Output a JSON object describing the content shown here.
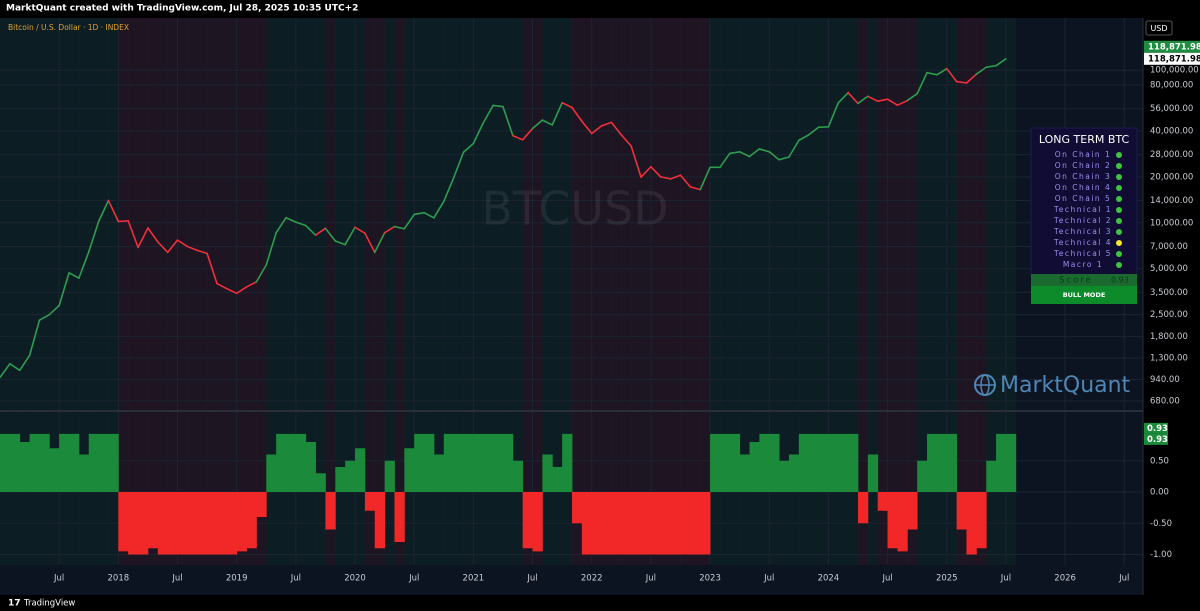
{
  "header": "MarktQuant created with TradingView.com, Jul 28, 2025 10:35 UTC+2",
  "footer": "TradingView",
  "symbol_title": "Bitcoin / U.S. Dollar · 1D · INDEX",
  "watermark": "BTCUSD",
  "logo": "MarktQuant",
  "currency": "USD",
  "chart_data": [
    {
      "type": "line",
      "log_scale": true,
      "grid": true,
      "positive_color": "#2e9d4e",
      "negative_color": "#f0303a",
      "x": [
        "2017-01",
        "2017-02",
        "2017-03",
        "2017-04",
        "2017-05",
        "2017-06",
        "2017-07",
        "2017-08",
        "2017-09",
        "2017-10",
        "2017-11",
        "2017-12",
        "2018-01",
        "2018-02",
        "2018-03",
        "2018-04",
        "2018-05",
        "2018-06",
        "2018-07",
        "2018-08",
        "2018-09",
        "2018-10",
        "2018-11",
        "2018-12",
        "2019-01",
        "2019-02",
        "2019-03",
        "2019-04",
        "2019-05",
        "2019-06",
        "2019-07",
        "2019-08",
        "2019-09",
        "2019-10",
        "2019-11",
        "2019-12",
        "2020-01",
        "2020-02",
        "2020-03",
        "2020-04",
        "2020-05",
        "2020-06",
        "2020-07",
        "2020-08",
        "2020-09",
        "2020-10",
        "2020-11",
        "2020-12",
        "2021-01",
        "2021-02",
        "2021-03",
        "2021-04",
        "2021-05",
        "2021-06",
        "2021-07",
        "2021-08",
        "2021-09",
        "2021-10",
        "2021-11",
        "2021-12",
        "2022-01",
        "2022-02",
        "2022-03",
        "2022-04",
        "2022-05",
        "2022-06",
        "2022-07",
        "2022-08",
        "2022-09",
        "2022-10",
        "2022-11",
        "2022-12",
        "2023-01",
        "2023-02",
        "2023-03",
        "2023-04",
        "2023-05",
        "2023-06",
        "2023-07",
        "2023-08",
        "2023-09",
        "2023-10",
        "2023-11",
        "2023-12",
        "2024-01",
        "2024-02",
        "2024-03",
        "2024-04",
        "2024-05",
        "2024-06",
        "2024-07",
        "2024-08",
        "2024-09",
        "2024-10",
        "2024-11",
        "2024-12",
        "2025-01",
        "2025-02",
        "2025-03",
        "2025-04",
        "2025-05",
        "2025-06",
        "2025-07"
      ],
      "values": [
        970,
        1190,
        1080,
        1350,
        2300,
        2500,
        2870,
        4700,
        4340,
        6450,
        10200,
        14000,
        10200,
        10300,
        6900,
        9250,
        7500,
        6400,
        7700,
        7000,
        6600,
        6300,
        4000,
        3700,
        3450,
        3800,
        4100,
        5300,
        8600,
        10800,
        10100,
        9600,
        8300,
        9200,
        7600,
        7200,
        9350,
        8550,
        6400,
        8600,
        9450,
        9140,
        11350,
        11650,
        10780,
        13800,
        19700,
        29000,
        33100,
        45200,
        58800,
        57700,
        37300,
        35000,
        41500,
        47100,
        43800,
        61300,
        57000,
        46300,
        38500,
        43200,
        45500,
        37700,
        31800,
        19900,
        23300,
        20000,
        19400,
        20500,
        17200,
        16500,
        23100,
        23100,
        28500,
        29200,
        27200,
        30500,
        29200,
        25900,
        27000,
        34700,
        37700,
        42300,
        42600,
        61200,
        71300,
        60600,
        67500,
        62700,
        64600,
        59000,
        63300,
        70200,
        96400,
        93400,
        102400,
        84300,
        82500,
        94200,
        104600,
        107100,
        118871.98
      ],
      "xlim": [
        "2017-01",
        "2026-09"
      ],
      "xticks": [
        {
          "value": "2017-07",
          "label": "Jul"
        },
        {
          "value": "2018-01",
          "label": "2018"
        },
        {
          "value": "2018-07",
          "label": "Jul"
        },
        {
          "value": "2019-01",
          "label": "2019"
        },
        {
          "value": "2019-07",
          "label": "Jul"
        },
        {
          "value": "2020-01",
          "label": "2020"
        },
        {
          "value": "2020-07",
          "label": "Jul"
        },
        {
          "value": "2021-01",
          "label": "2021"
        },
        {
          "value": "2021-07",
          "label": "Jul"
        },
        {
          "value": "2022-01",
          "label": "2022"
        },
        {
          "value": "2022-07",
          "label": "Jul"
        },
        {
          "value": "2023-01",
          "label": "2023"
        },
        {
          "value": "2023-07",
          "label": "Jul"
        },
        {
          "value": "2024-01",
          "label": "2024"
        },
        {
          "value": "2024-07",
          "label": "Jul"
        },
        {
          "value": "2025-01",
          "label": "2025"
        },
        {
          "value": "2025-07",
          "label": "Jul"
        },
        {
          "value": "2026-01",
          "label": "2026"
        },
        {
          "value": "2026-07",
          "label": "Jul"
        }
      ],
      "ylim": [
        593,
        220000
      ],
      "yticks": [
        {
          "value": 680,
          "label": "680.00"
        },
        {
          "value": 940,
          "label": "940.00"
        },
        {
          "value": 1300,
          "label": "1,300.00"
        },
        {
          "value": 1800,
          "label": "1,800.00"
        },
        {
          "value": 2500,
          "label": "2,500.00"
        },
        {
          "value": 3500,
          "label": "3,500.00"
        },
        {
          "value": 5000,
          "label": "5,000.00"
        },
        {
          "value": 7000,
          "label": "7,000.00"
        },
        {
          "value": 10000,
          "label": "10,000.00"
        },
        {
          "value": 14000,
          "label": "14,000.00"
        },
        {
          "value": 20000,
          "label": "20,000.00"
        },
        {
          "value": 28000,
          "label": "28,000.00"
        },
        {
          "value": 40000,
          "label": "40,000.00"
        },
        {
          "value": 56000,
          "label": "56,000.00"
        },
        {
          "value": 80000,
          "label": "80,000.00"
        },
        {
          "value": 100000,
          "label": "100,000.00"
        }
      ],
      "price_labels": [
        {
          "value": 118871.98,
          "label": "118,871.98",
          "color": "#1e8c3f"
        },
        {
          "value": 118871.98,
          "label": "118,871.98",
          "color": "#ffffff"
        }
      ]
    },
    {
      "type": "area",
      "grid": true,
      "positive_color": "#1b8a3a",
      "negative_color": "#f22828",
      "x": [
        "2017-01",
        "2017-02",
        "2017-03",
        "2017-04",
        "2017-05",
        "2017-06",
        "2017-07",
        "2017-08",
        "2017-09",
        "2017-10",
        "2017-11",
        "2017-12",
        "2018-01",
        "2018-02",
        "2018-03",
        "2018-04",
        "2018-05",
        "2018-06",
        "2018-07",
        "2018-08",
        "2018-09",
        "2018-10",
        "2018-11",
        "2018-12",
        "2019-01",
        "2019-02",
        "2019-03",
        "2019-04",
        "2019-05",
        "2019-06",
        "2019-07",
        "2019-08",
        "2019-09",
        "2019-10",
        "2019-11",
        "2019-12",
        "2020-01",
        "2020-02",
        "2020-03",
        "2020-04",
        "2020-05",
        "2020-06",
        "2020-07",
        "2020-08",
        "2020-09",
        "2020-10",
        "2020-11",
        "2020-12",
        "2021-01",
        "2021-02",
        "2021-03",
        "2021-04",
        "2021-05",
        "2021-06",
        "2021-07",
        "2021-08",
        "2021-09",
        "2021-10",
        "2021-11",
        "2021-12",
        "2022-01",
        "2022-02",
        "2022-03",
        "2022-04",
        "2022-05",
        "2022-06",
        "2022-07",
        "2022-08",
        "2022-09",
        "2022-10",
        "2022-11",
        "2022-12",
        "2023-01",
        "2023-02",
        "2023-03",
        "2023-04",
        "2023-05",
        "2023-06",
        "2023-07",
        "2023-08",
        "2023-09",
        "2023-10",
        "2023-11",
        "2023-12",
        "2024-01",
        "2024-02",
        "2024-03",
        "2024-04",
        "2024-05",
        "2024-06",
        "2024-07",
        "2024-08",
        "2024-09",
        "2024-10",
        "2024-11",
        "2024-12",
        "2025-01",
        "2025-02",
        "2025-03",
        "2025-04",
        "2025-05",
        "2025-06",
        "2025-07"
      ],
      "values": [
        0.93,
        0.93,
        0.8,
        0.93,
        0.93,
        0.7,
        0.93,
        0.93,
        0.6,
        0.93,
        0.93,
        0.93,
        -0.95,
        -1,
        -1,
        -0.9,
        -1,
        -1,
        -1,
        -1,
        -1,
        -1,
        -1,
        -1,
        -0.95,
        -0.9,
        -0.4,
        0.6,
        0.93,
        0.93,
        0.93,
        0.8,
        0.3,
        -0.6,
        0.4,
        0.5,
        0.7,
        -0.3,
        -0.9,
        0.5,
        -0.8,
        0.7,
        0.93,
        0.93,
        0.6,
        0.93,
        0.93,
        0.93,
        0.93,
        0.93,
        0.93,
        0.93,
        0.5,
        -0.9,
        -0.95,
        0.6,
        0.4,
        0.93,
        -0.5,
        -1,
        -1,
        -1,
        -1,
        -1,
        -1,
        -1,
        -1,
        -1,
        -1,
        -1,
        -1,
        -1,
        0.93,
        0.93,
        0.93,
        0.6,
        0.8,
        0.93,
        0.93,
        0.5,
        0.6,
        0.93,
        0.93,
        0.93,
        0.93,
        0.93,
        0.93,
        -0.5,
        0.6,
        -0.3,
        -0.9,
        -0.95,
        -0.6,
        0.5,
        0.93,
        0.93,
        0.93,
        -0.6,
        -1,
        -0.9,
        0.5,
        0.93,
        0.93
      ],
      "xlim": [
        "2017-01",
        "2026-09"
      ],
      "ylim": [
        -1.168,
        1.28
      ],
      "yticks": [
        {
          "value": -1,
          "label": "-1.00"
        },
        {
          "value": -0.5,
          "label": "-0.50"
        },
        {
          "value": 0,
          "label": "0.00"
        },
        {
          "value": 0.5,
          "label": "0.50"
        }
      ],
      "value_labels": [
        {
          "value": 0.93,
          "label": "0.93"
        },
        {
          "value": 0.93,
          "label": "0.93"
        }
      ]
    }
  ],
  "table": {
    "title": "LONG TERM BTC",
    "rows": [
      {
        "name": "On Chain 1",
        "color": "#3ec43e"
      },
      {
        "name": "On Chain 2",
        "color": "#3ec43e"
      },
      {
        "name": "On Chain 3",
        "color": "#3ec43e"
      },
      {
        "name": "On Chain 4",
        "color": "#3ec43e"
      },
      {
        "name": "On Chain 5",
        "color": "#3ec43e"
      },
      {
        "name": "Technical 1",
        "color": "#3ec43e"
      },
      {
        "name": "Technical 2",
        "color": "#3ec43e"
      },
      {
        "name": "Technical 3",
        "color": "#3ec43e"
      },
      {
        "name": "Technical 4",
        "color": "#f5e630"
      },
      {
        "name": "Technical 5",
        "color": "#3ec43e"
      },
      {
        "name": "Macro 1",
        "color": "#3ec43e"
      }
    ],
    "score_label": "Score",
    "score": "0.93",
    "mode": "BULL MODE"
  }
}
